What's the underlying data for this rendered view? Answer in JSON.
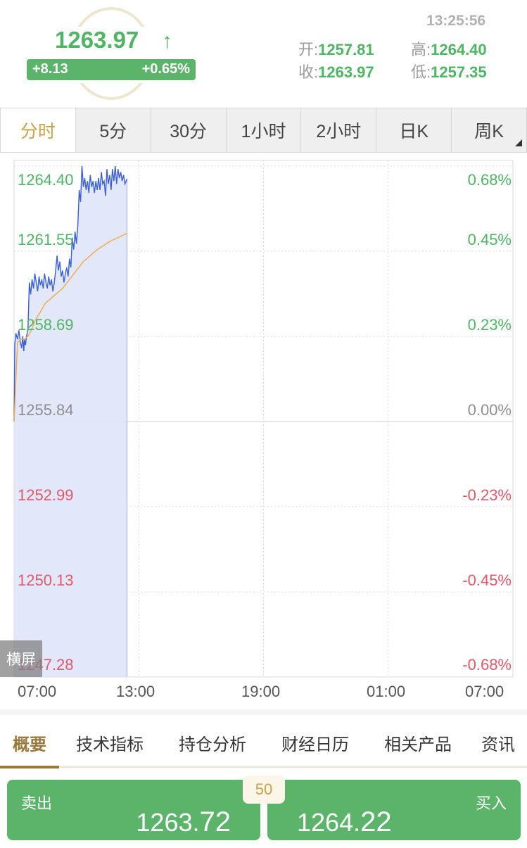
{
  "header": {
    "price": "1263.97",
    "change": "+8.13",
    "change_pct": "+0.65%",
    "time": "13:25:56",
    "open_label": "开:",
    "open": "1257.81",
    "high_label": "高:",
    "high": "1264.40",
    "close_label": "收:",
    "close": "1263.97",
    "low_label": "低:",
    "low": "1257.35",
    "up_color": "#4fb463",
    "down_color": "#e0596a"
  },
  "period_tabs": [
    "分时",
    "5分",
    "30分",
    "1小时",
    "2小时",
    "日K",
    "周K"
  ],
  "active_period": "分时",
  "chart_data": {
    "type": "line",
    "xlabel": "",
    "ylabel": "",
    "x_ticks": [
      "07:00",
      "13:00",
      "19:00",
      "01:00",
      "07:00"
    ],
    "y_ticks_left": [
      "1264.40",
      "1261.55",
      "1258.69",
      "1255.84",
      "1252.99",
      "1250.13",
      "1247.28"
    ],
    "y_ticks_right": [
      "0.68%",
      "0.45%",
      "0.23%",
      "0.00%",
      "-0.23%",
      "-0.45%",
      "-0.68%"
    ],
    "ylim": [
      1247.28,
      1264.4
    ],
    "baseline": 1255.84,
    "x_minutes_range": [
      0,
      1440
    ],
    "series": [
      {
        "color": "#3b5fd6",
        "fill": "#dfe5fa",
        "x": [
          0,
          2,
          5,
          10,
          14,
          18,
          22,
          25,
          28,
          30,
          33,
          36,
          40,
          44,
          48,
          52,
          56,
          60,
          64,
          68,
          72,
          76,
          80,
          84,
          88,
          92,
          96,
          100,
          104,
          108,
          112,
          116,
          120,
          124,
          128,
          132,
          136,
          140,
          144,
          148,
          152,
          156,
          160,
          164,
          168,
          172,
          176,
          180,
          184,
          188,
          192,
          196,
          200,
          204,
          208,
          212,
          216,
          220,
          224,
          228,
          232,
          236,
          240,
          244,
          248,
          252,
          256,
          260,
          264,
          268,
          272,
          276,
          280,
          284,
          288,
          292,
          296,
          300,
          304,
          308,
          312,
          316,
          320,
          326
        ],
        "values": [
          1255.84,
          1258.4,
          1258.8,
          1258.6,
          1258.9,
          1258.5,
          1258.3,
          1258.7,
          1258.2,
          1258.6,
          1258.4,
          1258.7,
          1258.9,
          1260.5,
          1260.1,
          1260.6,
          1260.3,
          1260.8,
          1260.5,
          1260.2,
          1260.7,
          1260.4,
          1260.6,
          1260.3,
          1260.8,
          1260.5,
          1260.3,
          1260.7,
          1260.4,
          1260.6,
          1260.2,
          1260.5,
          1260.9,
          1261.4,
          1260.9,
          1261.2,
          1260.7,
          1260.9,
          1260.5,
          1260.8,
          1261.0,
          1260.7,
          1261.3,
          1261.0,
          1262.0,
          1261.6,
          1262.2,
          1261.8,
          1262.4,
          1263.6,
          1263.2,
          1264.4,
          1263.7,
          1264.0,
          1263.6,
          1263.9,
          1263.5,
          1264.1,
          1263.7,
          1263.9,
          1263.5,
          1263.9,
          1263.6,
          1264.0,
          1263.6,
          1264.2,
          1263.8,
          1263.9,
          1263.4,
          1264.3,
          1263.8,
          1264.1,
          1263.6,
          1264.3,
          1263.9,
          1264.4,
          1263.8,
          1264.3,
          1264.0,
          1264.2,
          1263.9,
          1264.1,
          1263.8,
          1263.97
        ]
      },
      {
        "color": "#f0a94a",
        "x": [
          0,
          10,
          20,
          30,
          40,
          50,
          60,
          70,
          80,
          90,
          100,
          120,
          140,
          160,
          180,
          200,
          220,
          240,
          260,
          280,
          300,
          326
        ],
        "values": [
          1255.84,
          1258.5,
          1258.6,
          1258.6,
          1258.7,
          1258.9,
          1259.2,
          1259.4,
          1259.6,
          1259.8,
          1259.9,
          1260.1,
          1260.3,
          1260.6,
          1260.9,
          1261.2,
          1261.4,
          1261.6,
          1261.75,
          1261.9,
          1262.0,
          1262.15
        ]
      }
    ]
  },
  "landscape_label": "横屏",
  "bottom_tabs": [
    "概要",
    "技术指标",
    "持仓分析",
    "财经日历",
    "相关产品",
    "资讯"
  ],
  "active_bottom_tab": "概要",
  "trade": {
    "sell_label": "卖出",
    "sell_price_main": "1263.",
    "sell_price_tail": "72",
    "buy_label": "买入",
    "buy_price_main": "1264.",
    "buy_price_tail": "22",
    "spread": "50"
  }
}
